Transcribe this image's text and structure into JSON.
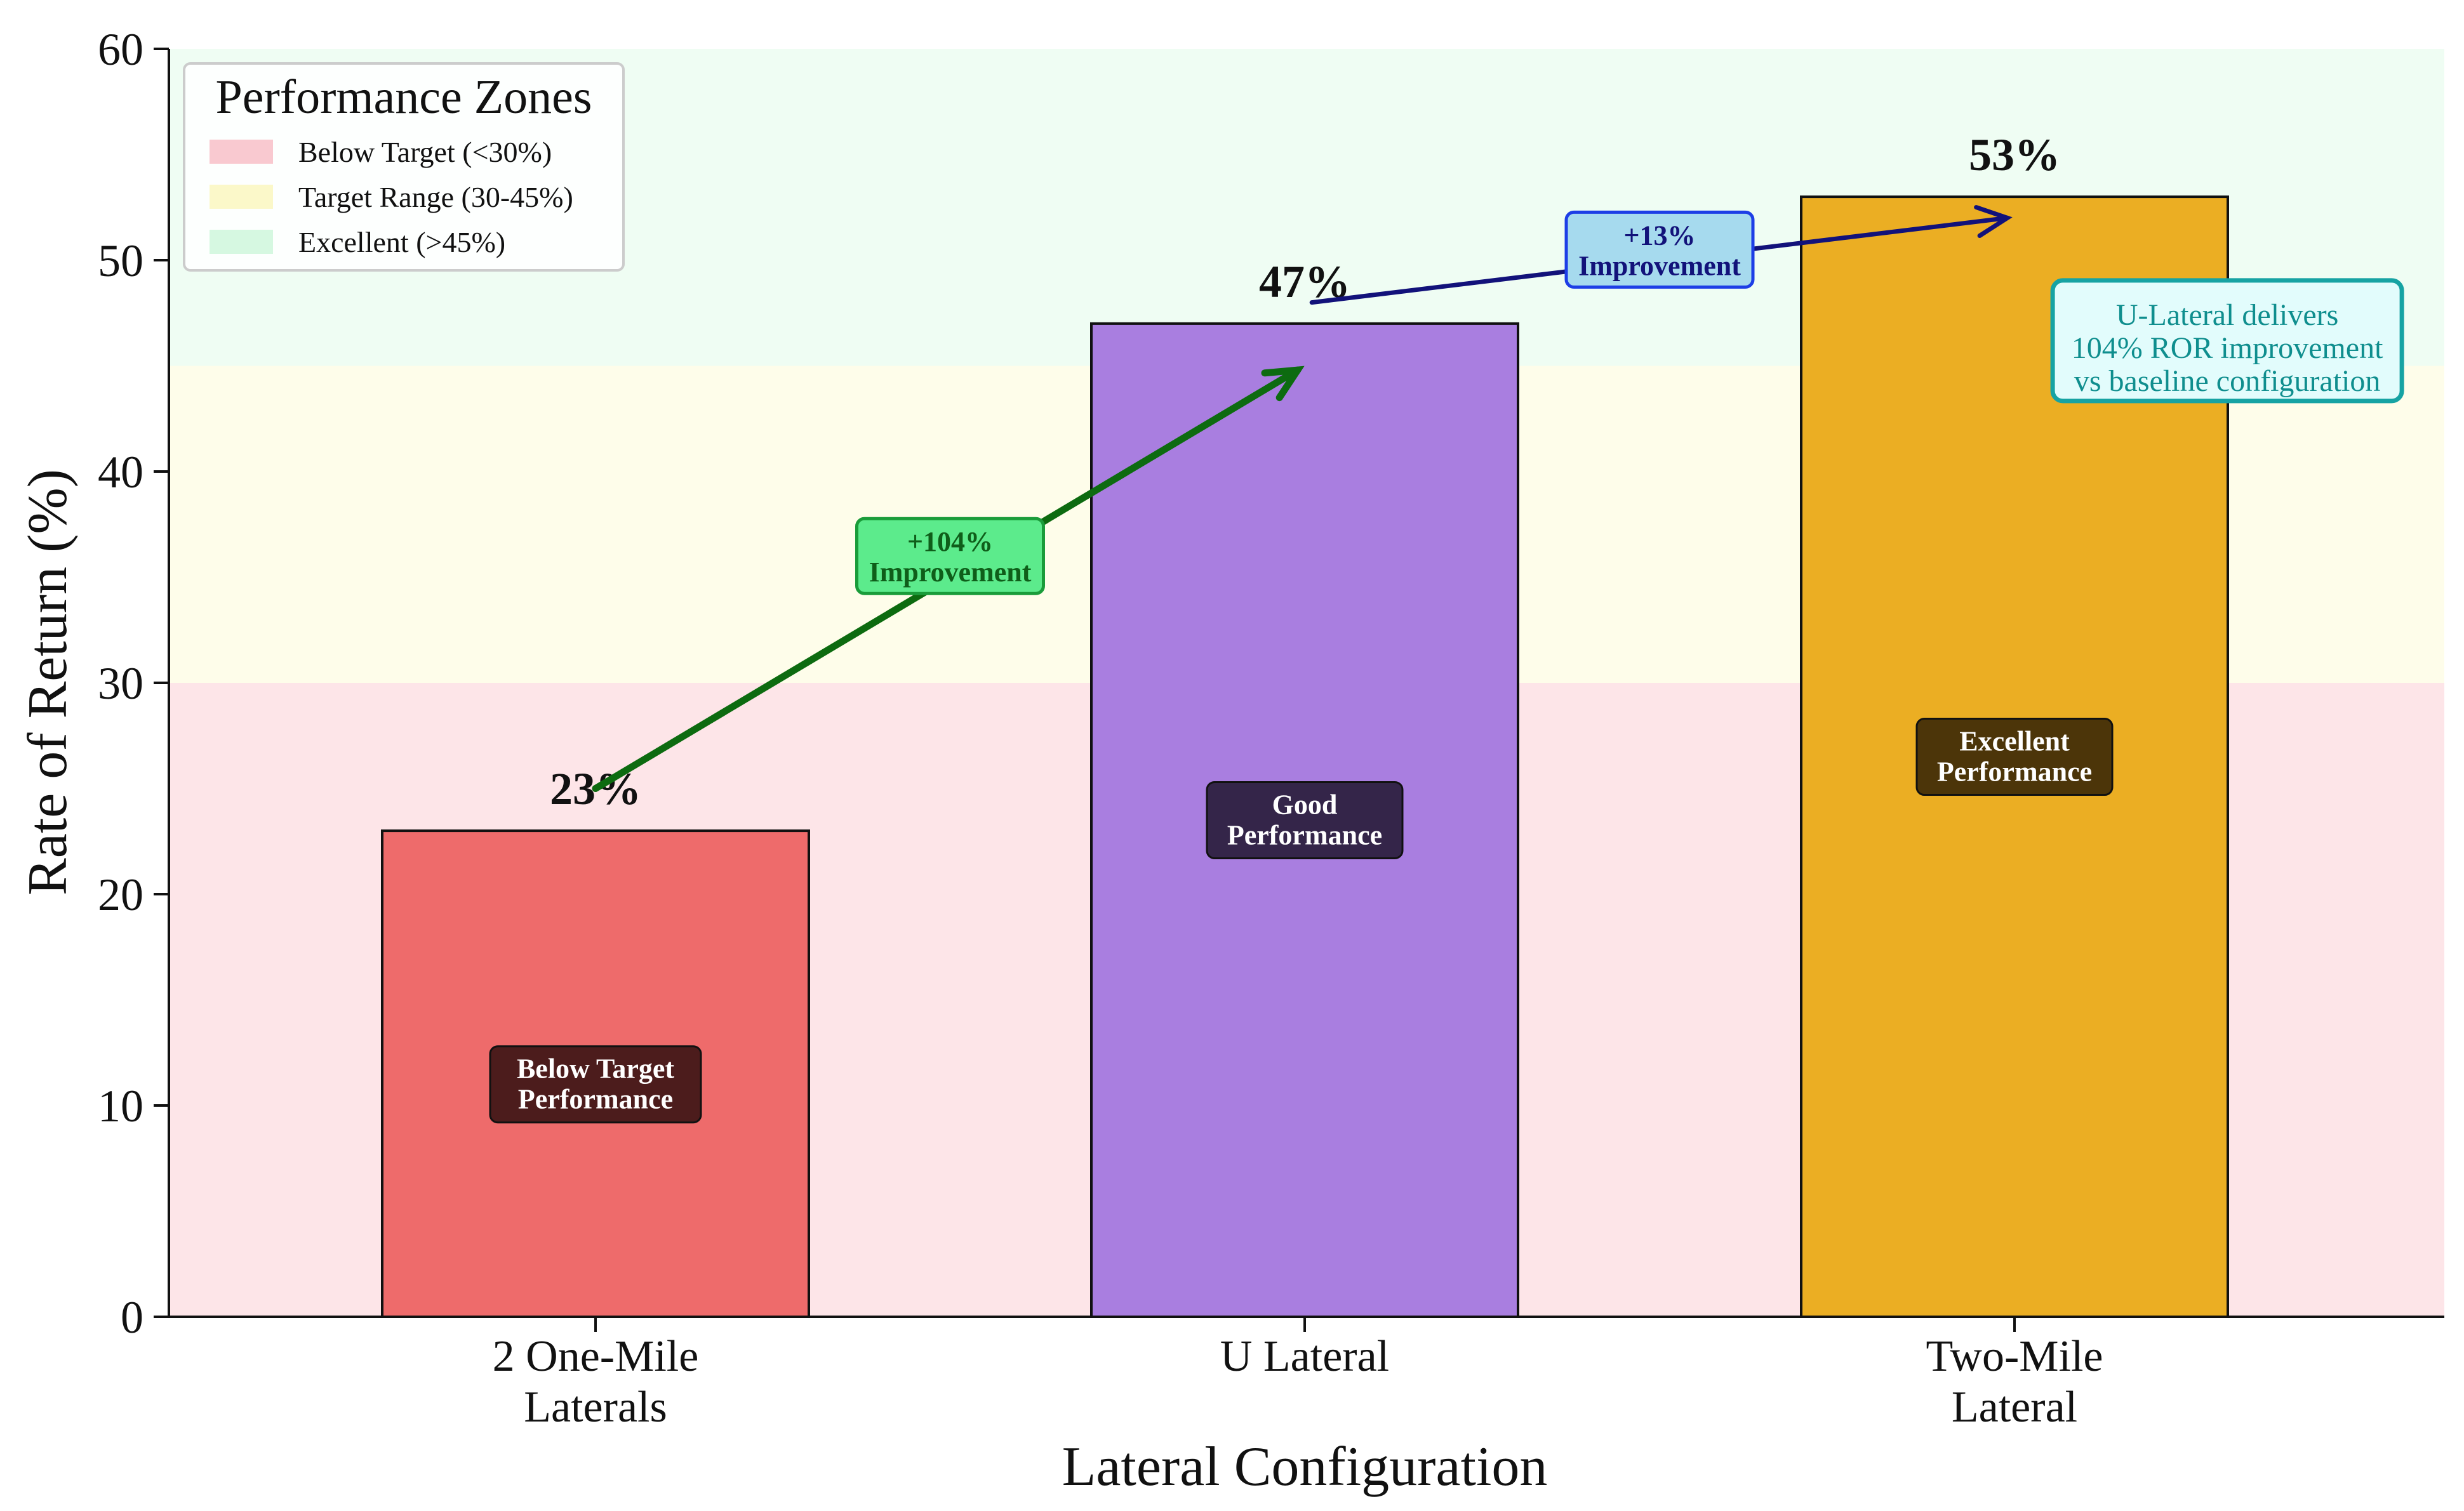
{
  "chart_data": {
    "type": "bar",
    "xlabel": "Lateral Configuration",
    "ylabel": "Rate of Return (%)",
    "ylim": [
      0,
      60
    ],
    "yticks": [
      0,
      10,
      20,
      30,
      40,
      50,
      60
    ],
    "grid": false,
    "categories": [
      [
        "2 One-Mile",
        "Laterals"
      ],
      [
        "U Lateral"
      ],
      [
        "Two-Mile",
        "Lateral"
      ]
    ],
    "values": [
      23,
      47,
      53
    ],
    "value_labels": [
      "23%",
      "47%",
      "53%"
    ],
    "bar_colors": [
      "#ee6b6b",
      "#a97ee0",
      "#ebae23"
    ],
    "bar_badges": [
      {
        "lines": [
          "Below Target",
          "Performance"
        ],
        "value_pos": 11,
        "fill": "#3e1616"
      },
      {
        "lines": [
          "Good",
          "Performance"
        ],
        "value_pos": 23.5,
        "fill": "#2a1d3c"
      },
      {
        "lines": [
          "Excellent",
          "Performance"
        ],
        "value_pos": 26.5,
        "fill": "#3e2a08"
      }
    ],
    "zones": [
      {
        "label": "Below Target (<30%)",
        "from": 0,
        "to": 30,
        "color": "#fde5e8"
      },
      {
        "label": "Target Range (30-45%)",
        "from": 30,
        "to": 45,
        "color": "#fefdea"
      },
      {
        "label": "Excellent (>45%)",
        "from": 45,
        "to": 60,
        "color": "#effdf3"
      }
    ],
    "legend": {
      "title": "Performance Zones",
      "placement": "top-left"
    },
    "annotations": [
      {
        "lines": [
          "+104%",
          "Improvement"
        ],
        "from": {
          "category": 0,
          "value": 25
        },
        "to": {
          "category": 0.99,
          "value": 44.8
        },
        "label_at": {
          "category": 0.5,
          "value": 36
        },
        "arrow_color": "#0d6b10",
        "box_fill": "#5ceb8c",
        "box_stroke": "#1a9c3a",
        "text_color": "#0f5e1a"
      },
      {
        "lines": [
          "+13%",
          "Improvement"
        ],
        "from": {
          "category": 1.01,
          "value": 48
        },
        "to": {
          "category": 1.99,
          "value": 52
        },
        "label_at": {
          "category": 1.5,
          "value": 50.5
        },
        "arrow_color": "#12127a",
        "box_fill": "#a6daee",
        "box_stroke": "#1d3ee6",
        "text_color": "#12127a"
      }
    ],
    "note": {
      "lines": [
        "U-Lateral delivers",
        "104% ROR improvement",
        "vs baseline configuration"
      ],
      "anchor": {
        "category": 2.3,
        "value": 45.8
      },
      "box_fill": "#e2fcfc",
      "box_stroke": "#16a3a3",
      "text_color": "#0f8e8e"
    }
  }
}
